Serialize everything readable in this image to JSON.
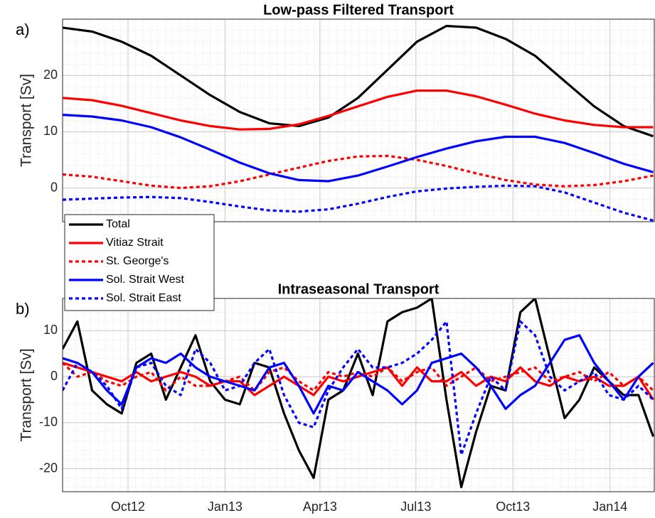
{
  "chart_data": [
    {
      "type": "line",
      "panel_label": "a)",
      "title": "Low-pass Filtered Transport",
      "ylabel": "Transport [Sv]",
      "x": [
        735081,
        735109,
        735137,
        735165,
        735193,
        735221,
        735249,
        735277,
        735305,
        735333,
        735361,
        735389,
        735417,
        735445,
        735473,
        735501,
        735529,
        735557,
        735585,
        735613,
        735641
      ],
      "xlim": [
        735081,
        735642
      ],
      "xticks": [
        735143,
        735235,
        735325,
        735416,
        735508,
        735600
      ],
      "xtick_labels": false,
      "ylim": [
        -6,
        30
      ],
      "yticks": [
        0,
        10,
        20
      ],
      "grid": true,
      "minor_grid": true,
      "legend": "southwest",
      "series": [
        {
          "name": "Total",
          "color": "#000000",
          "dash": "solid",
          "values": [
            28.5,
            27.8,
            26,
            23.5,
            20,
            16.5,
            13.5,
            11.5,
            11,
            12.5,
            16,
            21,
            26,
            28.8,
            28.5,
            26.5,
            23.5,
            19,
            14.5,
            11,
            9.2
          ]
        },
        {
          "name": "Vitiaz Strait",
          "color": "#ff0000",
          "dash": "solid",
          "values": [
            16,
            15.6,
            14.6,
            13.3,
            12,
            11,
            10.4,
            10.5,
            11.3,
            12.8,
            14.5,
            16.2,
            17.3,
            17.3,
            16.3,
            14.8,
            13.2,
            12,
            11.2,
            10.8,
            10.8
          ]
        },
        {
          "name": "St. George's",
          "color": "#ff0000",
          "dash": "dotted",
          "values": [
            2.4,
            2,
            1.2,
            0.4,
            0,
            0.3,
            1.2,
            2.4,
            3.6,
            4.8,
            5.6,
            5.7,
            5,
            3.9,
            2.6,
            1.4,
            0.6,
            0.3,
            0.5,
            1.2,
            2.2
          ]
        },
        {
          "name": "Sol. Strait West",
          "color": "#0000ff",
          "dash": "solid",
          "values": [
            13,
            12.7,
            12,
            10.8,
            9,
            6.8,
            4.5,
            2.6,
            1.4,
            1.2,
            2.2,
            3.8,
            5.5,
            7,
            8.3,
            9.1,
            9.1,
            8,
            6.2,
            4.3,
            2.8
          ]
        },
        {
          "name": "Sol. Strait East",
          "color": "#0000ff",
          "dash": "dotted",
          "values": [
            -2.1,
            -1.9,
            -1.7,
            -1.6,
            -1.8,
            -2.5,
            -3.3,
            -4,
            -4.2,
            -3.8,
            -2.8,
            -1.6,
            -0.6,
            -0.1,
            0.2,
            0.4,
            0.3,
            -0.8,
            -2.6,
            -4.4,
            -5.8
          ]
        }
      ]
    },
    {
      "type": "line",
      "panel_label": "b)",
      "title": "Intraseasonal Transport",
      "ylabel": "Transport [Sv]",
      "x": [
        735081,
        735095,
        735109,
        735123,
        735137,
        735151,
        735165,
        735179,
        735193,
        735207,
        735221,
        735235,
        735249,
        735263,
        735277,
        735291,
        735305,
        735319,
        735333,
        735347,
        735361,
        735375,
        735389,
        735403,
        735417,
        735431,
        735445,
        735459,
        735473,
        735487,
        735501,
        735515,
        735529,
        735543,
        735557,
        735571,
        735585,
        735599,
        735613,
        735627,
        735641
      ],
      "xlim": [
        735081,
        735642
      ],
      "xticks": [
        {
          "value": 735143,
          "label": "Oct12"
        },
        {
          "value": 735235,
          "label": "Jan13"
        },
        {
          "value": 735325,
          "label": "Apr13"
        },
        {
          "value": 735416,
          "label": "Jul13"
        },
        {
          "value": 735508,
          "label": "Oct13"
        },
        {
          "value": 735600,
          "label": "Jan14"
        }
      ],
      "ylim": [
        -25,
        17
      ],
      "yticks": [
        -20,
        -10,
        0,
        10
      ],
      "grid": true,
      "minor_grid": true,
      "series": [
        {
          "color": "#000000",
          "dash": "solid",
          "values": [
            6,
            12,
            -3,
            -6,
            -8,
            3,
            5,
            -5,
            2,
            9,
            -1,
            -5,
            -6,
            3,
            2,
            -8,
            -16,
            -22,
            -5,
            -3,
            5,
            -4,
            12,
            14,
            15,
            17,
            -5,
            -24,
            -12,
            -2,
            -3,
            14,
            17,
            4,
            -9,
            -5,
            2,
            -1,
            -4,
            -4,
            -13
          ]
        },
        {
          "color": "#ff0000",
          "dash": "solid",
          "values": [
            3,
            2,
            1,
            0,
            -1,
            1,
            -1,
            0,
            1,
            0,
            -2,
            -1,
            -1,
            -4,
            -2,
            0,
            -2,
            -4,
            0,
            -1,
            0,
            1,
            2,
            -2,
            2,
            -1,
            -1,
            1,
            -2,
            0,
            -1,
            2,
            -1,
            -2,
            0,
            -1,
            0,
            -2,
            -2,
            0,
            -5
          ]
        },
        {
          "color": "#ff0000",
          "dash": "dotted",
          "values": [
            3,
            0,
            1,
            -1,
            -2,
            0,
            1,
            -3,
            0,
            -2,
            -2,
            -1,
            0,
            -3,
            1,
            2,
            -1,
            -3,
            1,
            0,
            1,
            0,
            2,
            -1,
            1,
            2,
            -2,
            0,
            2,
            -1,
            0,
            1,
            2,
            -1,
            0,
            1,
            -1,
            1,
            -2,
            0,
            -3
          ]
        },
        {
          "color": "#0000ff",
          "dash": "solid",
          "values": [
            4,
            3,
            1,
            -3,
            -6,
            2,
            4,
            3,
            5,
            2,
            0,
            -1,
            -2,
            -3,
            2,
            3,
            -2,
            -8,
            -2,
            -3,
            1,
            -1,
            -3,
            -6,
            -3,
            3,
            4,
            5,
            2,
            -2,
            -7,
            -4,
            -2,
            3,
            8,
            9,
            3,
            -1,
            -5,
            0,
            3
          ]
        },
        {
          "color": "#0000ff",
          "dash": "dotted",
          "values": [
            -3,
            3,
            1,
            -2,
            -7,
            2,
            3,
            -2,
            -4,
            6,
            3,
            -3,
            -2,
            3,
            6,
            -4,
            -10,
            -11,
            -3,
            2,
            6,
            2,
            2,
            3,
            5,
            8,
            12,
            -17,
            -8,
            0,
            -3,
            12,
            9,
            0,
            -3,
            -1,
            1,
            -4,
            -5,
            -2,
            -5
          ]
        }
      ]
    }
  ]
}
